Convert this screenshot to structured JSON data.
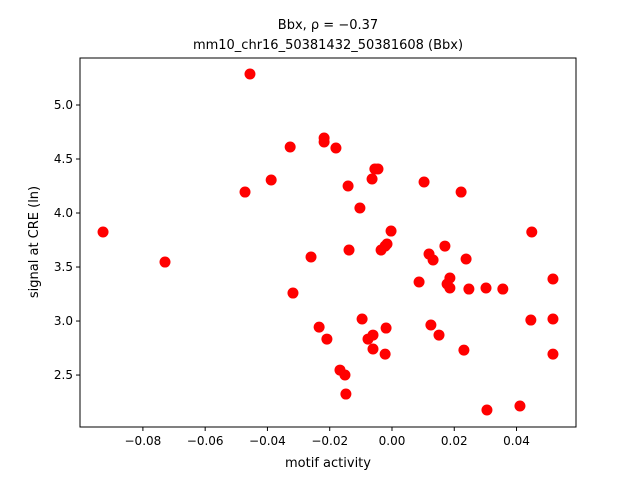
{
  "chart_data": {
    "type": "scatter",
    "title": "Bbx, ρ = −0.37",
    "subtitle": "mm10_chr16_50381432_50381608 (Bbx)",
    "x_label": "motif activity",
    "y_label": "signal at CRE (ln)",
    "color": "#ff0000",
    "xlim": [
      -0.1002,
      0.0591
    ],
    "ylim": [
      2.019,
      5.435
    ],
    "xticks": [
      {
        "value": -0.08,
        "label": "−0.08"
      },
      {
        "value": -0.06,
        "label": "−0.06"
      },
      {
        "value": -0.04,
        "label": "−0.04"
      },
      {
        "value": -0.02,
        "label": "−0.02"
      },
      {
        "value": 0,
        "label": "0.00"
      },
      0.02,
      0.04
    ],
    "yticks": [
      2.5,
      {
        "value": 3,
        "label": "3.0"
      },
      3.5,
      {
        "value": 4,
        "label": "4.0"
      },
      4.5,
      {
        "value": 5,
        "label": "5.0"
      }
    ],
    "x": [
      -0.0456,
      -0.0928,
      -0.0729,
      -0.0472,
      -0.0388,
      -0.0327,
      -0.0218,
      -0.0218,
      -0.018,
      -0.0318,
      -0.026,
      -0.0141,
      -0.0138,
      -0.0103,
      -0.0064,
      -0.0055,
      -0.0045,
      -0.0035,
      -0.0022,
      -0.0016,
      -0.0003,
      -0.0234,
      -0.0209,
      -0.0096,
      -0.0077,
      -0.0061,
      -0.0061,
      -0.0019,
      -0.0022,
      -0.0167,
      -0.0151,
      -0.0148,
      0.0103,
      0.0222,
      0.0087,
      0.0119,
      0.0132,
      0.017,
      0.0186,
      0.0177,
      0.0186,
      0.0238,
      0.0247,
      0.0125,
      0.0151,
      0.0231,
      0.0302,
      0.0356,
      0.0449,
      0.0446,
      0.0517,
      0.0517,
      0.0517,
      0.0305,
      0.0411
    ],
    "values": [
      5.287,
      3.824,
      3.546,
      4.194,
      4.306,
      4.611,
      4.694,
      4.657,
      4.602,
      3.259,
      3.593,
      4.25,
      3.657,
      4.046,
      4.315,
      4.407,
      4.407,
      3.657,
      3.694,
      3.713,
      3.833,
      2.944,
      2.833,
      3.019,
      2.833,
      2.87,
      2.741,
      2.935,
      2.694,
      2.546,
      2.5,
      2.324,
      4.287,
      4.194,
      3.361,
      3.62,
      3.565,
      3.694,
      3.398,
      3.343,
      3.306,
      3.574,
      3.296,
      2.963,
      2.87,
      2.731,
      3.306,
      3.296,
      3.824,
      3.009,
      3.389,
      3.019,
      2.694,
      2.176,
      2.213
    ]
  }
}
